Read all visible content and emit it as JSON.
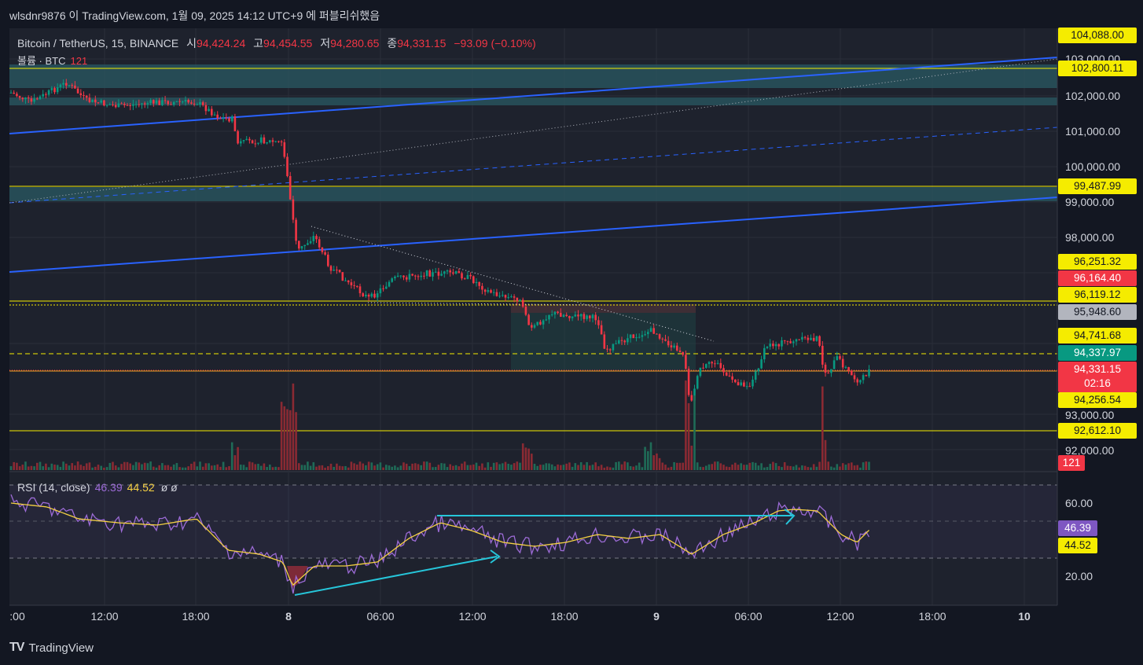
{
  "header": {
    "title": "wlsdnr9876 이 TradingView.com, 1월 09, 2025 14:12 UTC+9 에 퍼블리쉬했음"
  },
  "legend": {
    "symbol": "Bitcoin / TetherUS, 15, BINANCE",
    "open_label": "시",
    "open": "94,424.24",
    "high_label": "고",
    "high": "94,454.55",
    "low_label": "저",
    "low": "94,280.65",
    "close_label": "종",
    "close": "94,331.15",
    "change": "−93.09 (−0.10%)"
  },
  "volume_legend": {
    "label": "볼륨 · BTC",
    "value": "121"
  },
  "rsi_legend": {
    "label": "RSI (14, close)",
    "rsi": "46.39",
    "ma": "44.52",
    "extra": "ø  ø"
  },
  "price_ticks": [
    "102,000.00",
    "101,000.00",
    "100,000.00",
    "99,000.00",
    "98,000.00",
    "93,000.00",
    "92,000.00",
    "103,000.00"
  ],
  "rsi_ticks": [
    "60.00",
    "20.00"
  ],
  "price_tags": {
    "t104088": "104,088.00",
    "t102800": "102,800.11",
    "t99487": "99,487.99",
    "t96251": "96,251.32",
    "t96164": "96,164.40",
    "t96119": "96,119.12",
    "t95948": "95,948.60",
    "t94741": "94,741.68",
    "t94337": "94,337.97",
    "t94331": "94,331.15",
    "countdown": "02:16",
    "t94256": "94,256.54",
    "t92612": "92,612.10",
    "vol": "121",
    "rsi": "46.39",
    "rsima": "44.52"
  },
  "time_ticks": [
    ":00",
    "12:00",
    "18:00",
    "8",
    "06:00",
    "12:00",
    "18:00",
    "9",
    "06:00",
    "12:00",
    "18:00",
    "10"
  ],
  "footer": {
    "brand": "TradingView"
  },
  "colors": {
    "up": "#089981",
    "down": "#f23645",
    "line": "#2962ff",
    "level": "#f5ec00",
    "rsi": "#9c6bd6",
    "rsima": "#f5d142"
  }
}
